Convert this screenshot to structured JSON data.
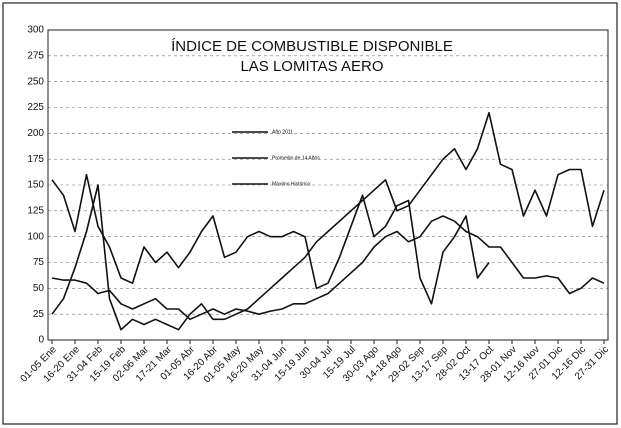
{
  "chart_data": {
    "type": "line",
    "title": "ÍNDICE DE COMBUSTIBLE DISPONIBLE",
    "subtitle": "LAS LOMITAS  AERO",
    "categories": [
      "01-05 Ene",
      null,
      "16-20 Ene",
      null,
      "31-04 Feb",
      null,
      "15-19 Feb",
      null,
      "02-06 Mar",
      null,
      "17-21 Mar",
      null,
      "01-05 Abr",
      null,
      "16-20 Abr",
      null,
      "01-05 May",
      null,
      "16-20 May",
      null,
      "31-04 Jun",
      null,
      "15-19 Jun",
      null,
      "30-04 Jul",
      null,
      "15-19 Jul",
      null,
      "30-03 Ago",
      null,
      "14-18 Ago",
      null,
      "29-02 Sep",
      null,
      "13-17 Sep",
      null,
      "28-02 Oct",
      null,
      "13-17 Oct",
      null,
      "28-01 Nov",
      null,
      "12-16 Nov",
      null,
      "27-01 Dic",
      null,
      "12-16 Dic",
      null,
      "27-31 Dic"
    ],
    "series": [
      {
        "name": "Año 2011",
        "color": "#111111",
        "values": [
          155,
          140,
          105,
          160,
          110,
          90,
          60,
          55,
          90,
          75,
          85,
          70,
          85,
          105,
          120,
          80,
          85,
          100,
          105,
          100,
          100,
          105,
          100,
          50,
          55,
          80,
          110,
          140,
          100,
          110,
          130,
          135,
          60,
          35,
          85,
          100,
          120,
          60,
          75,
          null,
          null,
          null,
          null,
          null,
          null,
          null,
          null,
          null,
          null
        ]
      },
      {
        "name": "Promedio de 14 Años",
        "color": "#111111",
        "values": [
          25,
          40,
          70,
          105,
          150,
          40,
          10,
          20,
          15,
          20,
          15,
          10,
          25,
          35,
          20,
          20,
          25,
          30,
          40,
          50,
          60,
          70,
          80,
          95,
          105,
          115,
          125,
          135,
          145,
          155,
          125,
          130,
          145,
          160,
          175,
          185,
          165,
          185,
          220,
          170,
          165,
          120,
          145,
          120,
          160,
          165,
          165,
          110,
          145
        ]
      },
      {
        "name": "Máximo Histórico",
        "color": "#111111",
        "values": [
          60,
          58,
          58,
          55,
          45,
          48,
          35,
          30,
          35,
          40,
          30,
          30,
          20,
          25,
          30,
          25,
          30,
          28,
          25,
          28,
          30,
          35,
          35,
          40,
          45,
          55,
          65,
          75,
          90,
          100,
          105,
          95,
          100,
          115,
          120,
          115,
          105,
          100,
          90,
          90,
          75,
          60,
          60,
          62,
          60,
          45,
          50,
          60,
          55
        ]
      }
    ],
    "ylim": [
      0,
      300
    ],
    "yticks": [
      0,
      25,
      50,
      75,
      100,
      125,
      150,
      175,
      200,
      225,
      250,
      275,
      300
    ],
    "grid": true
  }
}
